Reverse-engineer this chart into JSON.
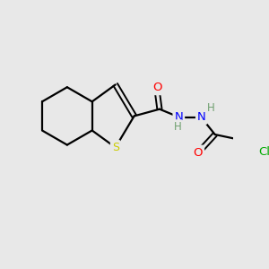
{
  "background_color": "#e8e8e8",
  "bond_color": "#000000",
  "atom_colors": {
    "O": "#ff0000",
    "N": "#0000ff",
    "S": "#cccc00",
    "Cl": "#00aa00",
    "H": "#6fa06f",
    "C": "#000000"
  },
  "figsize": [
    3.0,
    3.0
  ],
  "dpi": 100
}
